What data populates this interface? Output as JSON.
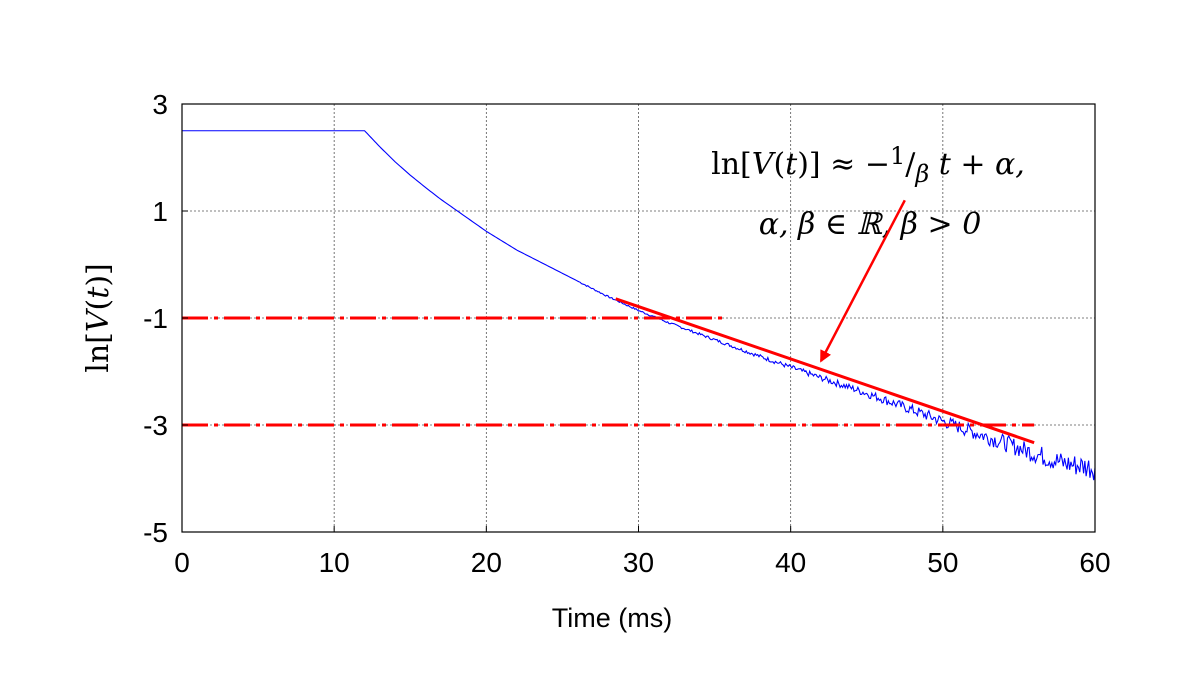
{
  "chart_data": {
    "type": "line",
    "xlabel": "Time (ms)",
    "ylabel": "ln[V(t)]",
    "xlim": [
      0,
      60
    ],
    "ylim": [
      -5,
      3
    ],
    "xticks": [
      0,
      10,
      20,
      30,
      40,
      50,
      60
    ],
    "yticks": [
      3,
      1,
      -1,
      -3,
      -5
    ],
    "xtick_labels": [
      "0",
      "10",
      "20",
      "30",
      "40",
      "50",
      "60"
    ],
    "ytick_labels": [
      "3",
      "1",
      "-1",
      "-3",
      "-5"
    ],
    "grid": true,
    "series": [
      {
        "name": "ln[V(t)] measured",
        "color": "#0000ff",
        "style": "solid",
        "x": [
          0,
          12,
          13,
          14,
          15,
          16,
          17,
          18,
          19,
          20,
          22,
          24,
          26,
          28,
          30,
          32,
          34,
          36,
          38,
          40,
          42,
          44,
          46,
          48,
          50,
          52,
          54,
          56,
          58,
          60
        ],
        "y": [
          2.5,
          2.5,
          2.2,
          1.92,
          1.67,
          1.44,
          1.22,
          1.02,
          0.82,
          0.62,
          0.27,
          -0.02,
          -0.31,
          -0.6,
          -0.86,
          -1.09,
          -1.3,
          -1.51,
          -1.72,
          -1.92,
          -2.12,
          -2.31,
          -2.51,
          -2.72,
          -2.93,
          -3.13,
          -3.33,
          -3.53,
          -3.72,
          -3.8
        ]
      },
      {
        "name": "Linear fit",
        "color": "#ff0000",
        "style": "solid",
        "x": [
          28.5,
          56
        ],
        "y": [
          -0.64,
          -3.33
        ]
      },
      {
        "name": "Upper threshold",
        "color": "#ff0000",
        "style": "dash-dot",
        "x": [
          0,
          35.5
        ],
        "y": [
          -1,
          -1
        ]
      },
      {
        "name": "Lower threshold",
        "color": "#ff0000",
        "style": "dash-dot",
        "x": [
          0,
          56
        ],
        "y": [
          -3,
          -3
        ]
      }
    ],
    "annotation": {
      "line1_prefix": "ln[",
      "line1_V": "V",
      "line1_mid": "(",
      "line1_t": "t",
      "line1_close": ")] ≈ −",
      "line1_num": "1",
      "line1_slash": "/",
      "line1_beta": "β",
      "line1_tail": " t + α,",
      "line2": "α, β ∈ ℝ, β > 0",
      "arrow_from": [
        47.5,
        1.2
      ],
      "arrow_to": [
        42,
        -1.8
      ],
      "color": "#ff0000"
    },
    "ylabel_parts": {
      "pre": "ln[",
      "V": "V",
      "open": "(",
      "t": "t",
      "close": ")]"
    }
  }
}
